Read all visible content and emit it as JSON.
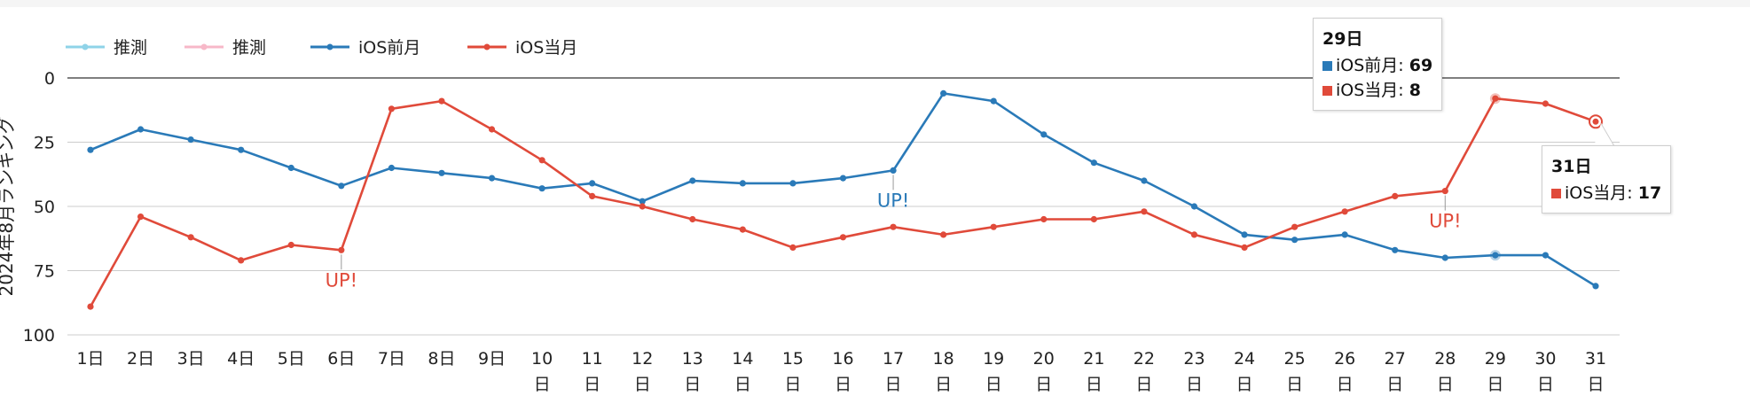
{
  "chart_data": {
    "type": "line",
    "ylabel": "2024年8月ランキング",
    "ylim": [
      0,
      100
    ],
    "y_inverted": true,
    "yticks": [
      0,
      25,
      50,
      75,
      100
    ],
    "grid": true,
    "legend_position": "top-left",
    "categories": [
      "1日",
      "2日",
      "3日",
      "4日",
      "5日",
      "6日",
      "7日",
      "8日",
      "9日",
      "10日",
      "11日",
      "12日",
      "13日",
      "14日",
      "15日",
      "16日",
      "17日",
      "18日",
      "19日",
      "20日",
      "21日",
      "22日",
      "23日",
      "24日",
      "25日",
      "26日",
      "27日",
      "28日",
      "29日",
      "30日",
      "31日"
    ],
    "legend": [
      {
        "name": "推測",
        "color": "#8fd3e8"
      },
      {
        "name": "推測",
        "color": "#f7b8c8"
      },
      {
        "name": "iOS前月",
        "color": "#2a7ab8"
      },
      {
        "name": "iOS当月",
        "color": "#e04a3a"
      }
    ],
    "series": [
      {
        "name": "iOS前月",
        "color": "#2a7ab8",
        "values": [
          28,
          20,
          24,
          28,
          35,
          42,
          35,
          37,
          39,
          43,
          41,
          48,
          40,
          41,
          41,
          39,
          36,
          6,
          9,
          22,
          33,
          40,
          50,
          61,
          63,
          61,
          67,
          70,
          69,
          69,
          81
        ]
      },
      {
        "name": "iOS当月",
        "color": "#e04a3a",
        "values": [
          89,
          54,
          62,
          71,
          65,
          67,
          12,
          9,
          20,
          32,
          46,
          50,
          55,
          59,
          66,
          62,
          58,
          61,
          58,
          55,
          55,
          52,
          61,
          66,
          58,
          52,
          46,
          44,
          8,
          10,
          17
        ]
      }
    ],
    "annotations": [
      {
        "series": "iOS当月",
        "category": "6日",
        "text": "UP!"
      },
      {
        "series": "iOS前月",
        "category": "17日",
        "text": "UP!"
      },
      {
        "series": "iOS当月",
        "category": "28日",
        "text": "UP!"
      }
    ]
  },
  "tooltips": [
    {
      "title": "29日",
      "rows": [
        {
          "label": "iOS前月",
          "value": "69",
          "color": "#2a7ab8"
        },
        {
          "label": "iOS当月",
          "value": "8",
          "color": "#e04a3a"
        }
      ]
    },
    {
      "title": "31日",
      "rows": [
        {
          "label": "iOS当月",
          "value": "17",
          "color": "#e04a3a"
        }
      ]
    }
  ]
}
